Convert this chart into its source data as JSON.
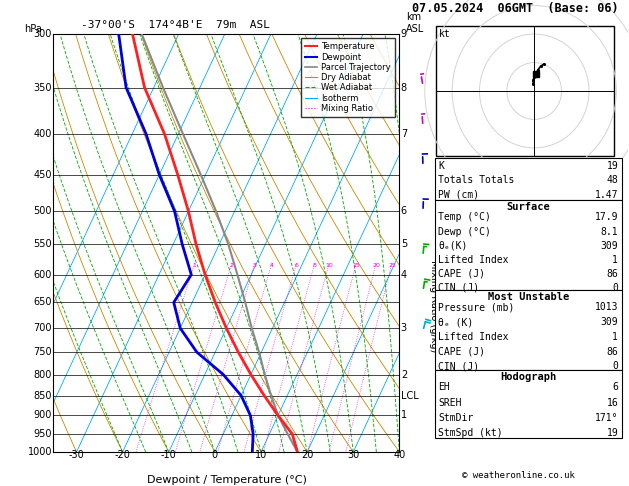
{
  "title_left": "-37°00'S  174°4B'E  79m  ASL",
  "title_right": "07.05.2024  06GMT  (Base: 06)",
  "xlabel": "Dewpoint / Temperature (°C)",
  "pressure_levels": [
    300,
    350,
    400,
    450,
    500,
    550,
    600,
    650,
    700,
    750,
    800,
    850,
    900,
    950,
    1000
  ],
  "xlim": [
    -35,
    40
  ],
  "temp_color": "#ff2020",
  "dewpoint_color": "#0000dd",
  "parcel_color": "#888888",
  "dry_adiabat_color": "#cc8800",
  "wet_adiabat_color": "#00aa00",
  "isotherm_color": "#00aaff",
  "mixing_ratio_color": "#ee00ee",
  "background_color": "#ffffff",
  "info_panel": {
    "K": 19,
    "Totals_Totals": 48,
    "PW_cm": 1.47,
    "Surface_Temp": 17.9,
    "Surface_Dewp": 8.1,
    "Surface_theta_e": 309,
    "Surface_Lifted_Index": 1,
    "Surface_CAPE": 86,
    "Surface_CIN": 0,
    "MU_Pressure": 1013,
    "MU_theta_e": 309,
    "MU_Lifted_Index": 1,
    "MU_CAPE": 86,
    "MU_CIN": 0,
    "Hodo_EH": 6,
    "Hodo_SREH": 16,
    "Hodo_StmDir": "171°",
    "Hodo_StmSpd": 19
  },
  "temp_profile_T": [
    17.9,
    15.0,
    10.0,
    5.0,
    0.0,
    -5.0,
    -10.0,
    -15.0,
    -20.0,
    -25.0,
    -30.0,
    -36.0,
    -43.0,
    -52.0,
    -60.0
  ],
  "temp_profile_P": [
    1000,
    950,
    900,
    850,
    800,
    750,
    700,
    650,
    600,
    550,
    500,
    450,
    400,
    350,
    300
  ],
  "dewp_profile_T": [
    8.1,
    6.5,
    4.0,
    0.0,
    -6.0,
    -14.0,
    -20.0,
    -24.0,
    -23.0,
    -28.0,
    -33.0,
    -40.0,
    -47.0,
    -56.0,
    -63.0
  ],
  "dewp_profile_P": [
    1000,
    950,
    900,
    850,
    800,
    750,
    700,
    650,
    600,
    550,
    500,
    450,
    400,
    350,
    300
  ],
  "parcel_T": [
    17.9,
    14.0,
    10.0,
    6.5,
    3.0,
    -0.5,
    -4.5,
    -8.5,
    -13.0,
    -18.0,
    -24.0,
    -31.0,
    -39.0,
    -48.0,
    -58.0
  ],
  "parcel_P": [
    1000,
    950,
    900,
    850,
    800,
    750,
    700,
    650,
    600,
    550,
    500,
    450,
    400,
    350,
    300
  ],
  "km_labels": {
    "300": "9",
    "350": "8",
    "400": "7",
    "450": "",
    "500": "6",
    "550": "5",
    "600": "4",
    "650": "",
    "700": "3",
    "750": "",
    "800": "2",
    "850": "LCL",
    "900": "1",
    "950": "",
    "1000": ""
  },
  "mixing_ratio_values": [
    1,
    2,
    3,
    4,
    6,
    8,
    10,
    15,
    20,
    25
  ],
  "skew_factor": 35.0,
  "legend_entries": [
    [
      "Temperature",
      "#ff2020",
      "solid",
      1.5
    ],
    [
      "Dewpoint",
      "#0000dd",
      "solid",
      1.5
    ],
    [
      "Parcel Trajectory",
      "#888888",
      "solid",
      1.2
    ],
    [
      "Dry Adiabat",
      "#cc8800",
      "solid",
      0.8
    ],
    [
      "Wet Adiabat",
      "#00aa00",
      "dashed",
      0.8
    ],
    [
      "Isotherm",
      "#00aaff",
      "solid",
      0.8
    ],
    [
      "Mixing Ratio",
      "#ee00ee",
      "dotted",
      0.8
    ]
  ],
  "wind_barb_data": [
    {
      "P": 1000,
      "speed": 5,
      "dir": 170,
      "color": "#00aaff"
    },
    {
      "P": 925,
      "speed": 8,
      "dir": 175,
      "color": "#00aa00"
    },
    {
      "P": 850,
      "speed": 10,
      "dir": 180,
      "color": "#00aa00"
    },
    {
      "P": 700,
      "speed": 12,
      "dir": 185,
      "color": "#0000dd"
    },
    {
      "P": 500,
      "speed": 15,
      "dir": 190,
      "color": "#0000dd"
    },
    {
      "P": 300,
      "speed": 20,
      "dir": 200,
      "color": "#aa00aa"
    }
  ]
}
